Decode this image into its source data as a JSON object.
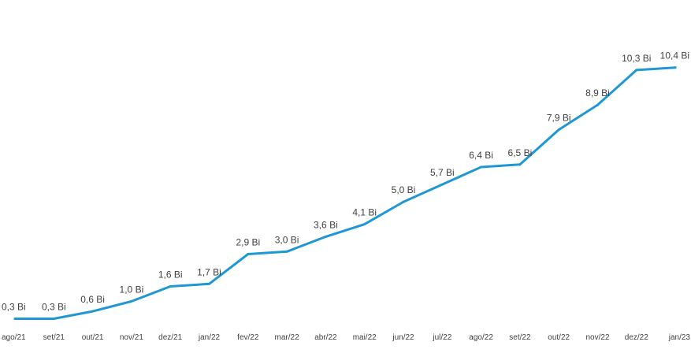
{
  "chart_data": {
    "type": "line",
    "title": "",
    "xlabel": "",
    "ylabel": "",
    "grid": false,
    "legend": "none",
    "categories": [
      "ago/21",
      "set/21",
      "out/21",
      "nov/21",
      "dez/21",
      "jan/22",
      "fev/22",
      "mar/22",
      "abr/22",
      "mai/22",
      "jun/22",
      "jul/22",
      "ago/22",
      "set/22",
      "out/22",
      "nov/22",
      "dez/22",
      "jan/23"
    ],
    "series": [
      {
        "values": [
          0.3,
          0.3,
          0.6,
          1.0,
          1.6,
          1.7,
          2.9,
          3.0,
          3.6,
          4.1,
          5.0,
          5.7,
          6.4,
          6.5,
          7.9,
          8.9,
          10.3,
          10.4
        ],
        "data_labels": [
          "0,3 Bi",
          "0,3 Bi",
          "0,6 Bi",
          "1,0 Bi",
          "1,6 Bi",
          "1,7 Bi",
          "2,9 Bi",
          "3,0 Bi",
          "3,6 Bi",
          "4,1 Bi",
          "5,0 Bi",
          "5,7 Bi",
          "6,4 Bi",
          "6,5 Bi",
          "7,9 Bi",
          "8,9 Bi",
          "10,3 Bi",
          "10,4 Bi"
        ],
        "color": "#1f97d4"
      }
    ],
    "ylim": [
      0,
      11.5
    ]
  }
}
